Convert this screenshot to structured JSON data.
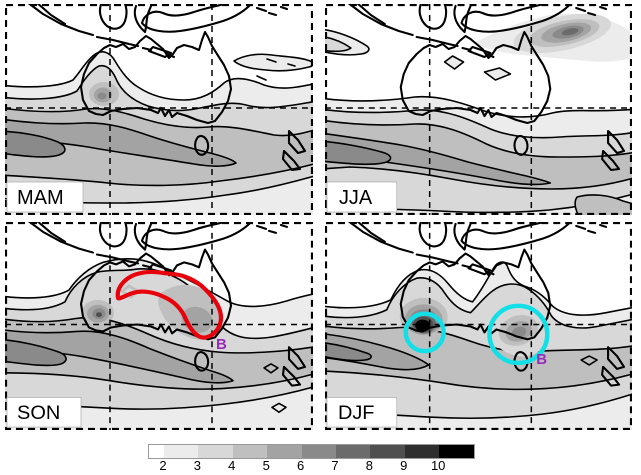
{
  "figure": {
    "description": "Four-panel seasonal filled-contour maps of the Australia / Maritime Continent region with grayscale shading, dashed lat-lon gridlines and annotation highlights",
    "panels": [
      {
        "id": "mam",
        "label": "MAM"
      },
      {
        "id": "jja",
        "label": "JJA"
      },
      {
        "id": "son",
        "label": "SON",
        "b_label": "B",
        "highlight": {
          "type": "thick-contour",
          "color_name": "red",
          "region": "northern and central Australia"
        }
      },
      {
        "id": "djf",
        "label": "DJF",
        "b_label": "B",
        "highlight": {
          "type": "circles",
          "color_name": "cyan",
          "regions": [
            "southwest Australia",
            "southeast Australia"
          ]
        }
      }
    ]
  },
  "annotations": {
    "red_contour_color": "#e8000a",
    "cyan_circle_color": "#12dfe6",
    "b_marker_color": "#992cb8"
  },
  "chart_data": {
    "type": "heatmap",
    "subtype": "filled-contour-map, 2x2 seasonal panels",
    "title": "",
    "xlabel": "",
    "ylabel": "",
    "panels": [
      "MAM",
      "JJA",
      "SON",
      "DJF"
    ],
    "gridlines": {
      "style": "dashed",
      "vertical_per_panel": 2,
      "horizontal_per_panel": 1,
      "dashed_frame": true
    },
    "colorbar": {
      "orientation": "horizontal",
      "position": "bottom-center",
      "ticks": [
        "2",
        "3",
        "4",
        "5",
        "6",
        "7",
        "8",
        "9",
        "10"
      ],
      "levels": [
        2,
        3,
        4,
        5,
        6,
        7,
        8,
        9,
        10
      ],
      "segment_colors": [
        "#ffffff",
        "#ececec",
        "#d8d8d8",
        "#bfbfbf",
        "#a3a3a3",
        "#8a8a8a",
        "#6b6b6b",
        "#4f4f4f",
        "#2e2e2e",
        "#000000"
      ]
    },
    "features": [
      {
        "panel": "MAM",
        "feature": "zonal storm-track band south of Australia, core value ~6-7 near left edge; small local maximum ~6 just west of Australia; weak light shading (~2-3) northeast of New Guinea"
      },
      {
        "panel": "JJA",
        "feature": "strong compact maximum ~8-9 northeast of New Guinea with tight contour rings; storm-track band south of Australia with core ~6-7; light patches over Northern Territory interior"
      },
      {
        "panel": "SON",
        "feature": "tight maximum ~8-9 over west Australia; secondary gray blob ~5-6 over central-east Australia; red thick contour encloses northern-central Australia with purple B marker at its southeast edge"
      },
      {
        "panel": "DJF",
        "feature": "black maximum >10 over southwest Australia and secondary maximum ~6-7 over southeast Australia, each circled in cyan; purple B marker beside eastern circle; storm-track core ~6-7 at left edge"
      }
    ],
    "legend_position": "bottom"
  }
}
